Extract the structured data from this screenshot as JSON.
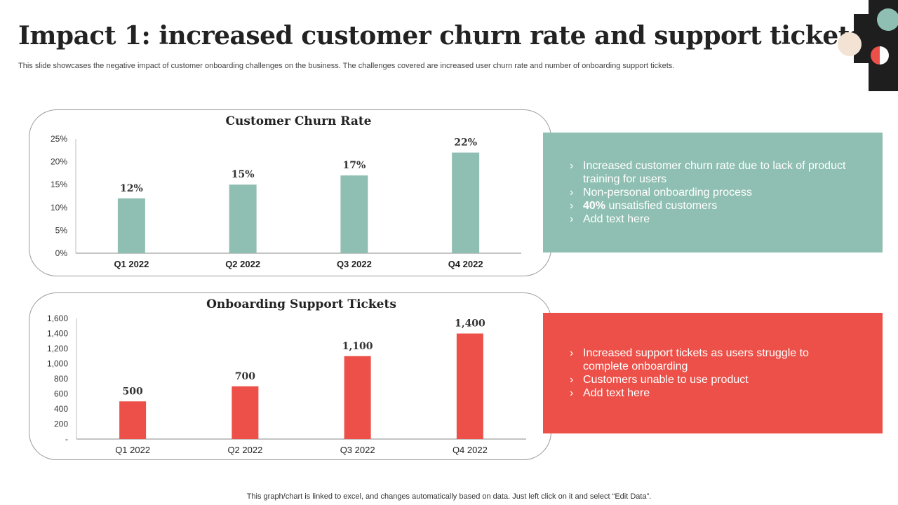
{
  "header": {
    "title": "Impact 1: increased customer churn rate and support tickets",
    "subtitle": "This slide showcases the negative impact of customer onboarding challenges on the business. The challenges covered are increased user churn rate and number of onboarding support tickets."
  },
  "colors": {
    "teal": "#8fbfb2",
    "red": "#ec5048",
    "beige": "#f2e3d5",
    "dark": "#1e1e1e"
  },
  "chart_data": [
    {
      "type": "bar",
      "title": "Customer Churn Rate",
      "categories": [
        "Q1 2022",
        "Q2 2022",
        "Q3 2022",
        "Q4 2022"
      ],
      "values": [
        12,
        15,
        17,
        22
      ],
      "data_labels": [
        "12%",
        "15%",
        "17%",
        "22%"
      ],
      "y_ticks": [
        "0%",
        "5%",
        "10%",
        "15%",
        "20%",
        "25%"
      ],
      "ylim": [
        0,
        25
      ],
      "xlabel": "",
      "ylabel": "",
      "color": "#8fbfb2"
    },
    {
      "type": "bar",
      "title": "Onboarding Support Tickets",
      "categories": [
        "Q1 2022",
        "Q2 2022",
        "Q3 2022",
        "Q4 2022"
      ],
      "values": [
        500,
        700,
        1100,
        1400
      ],
      "data_labels": [
        "500",
        "700",
        "1,100",
        "1,400"
      ],
      "y_ticks": [
        "-",
        "200",
        "400",
        "600",
        "800",
        "1,000",
        "1,200",
        "1,400",
        "1,600"
      ],
      "ylim": [
        0,
        1600
      ],
      "xlabel": "",
      "ylabel": "",
      "color": "#ec5048"
    }
  ],
  "info1": {
    "items": [
      {
        "arrow": "›",
        "text": "Increased customer churn rate due to lack of product training for users"
      },
      {
        "arrow": "›",
        "text": "Non-personal onboarding process"
      },
      {
        "arrow": "›",
        "bold": "40%",
        "text": " unsatisfied customers"
      },
      {
        "arrow": "›",
        "text": "Add text here"
      }
    ]
  },
  "info2": {
    "items": [
      {
        "arrow": "›",
        "text": "Increased support tickets as users struggle to complete onboarding"
      },
      {
        "arrow": "›",
        "text": "Customers unable to use product"
      },
      {
        "arrow": "›",
        "text": "Add text here"
      }
    ]
  },
  "footer": {
    "note": "This graph/chart is linked to excel,  and changes automatically based on data. Just left click on it and select “Edit Data”."
  }
}
